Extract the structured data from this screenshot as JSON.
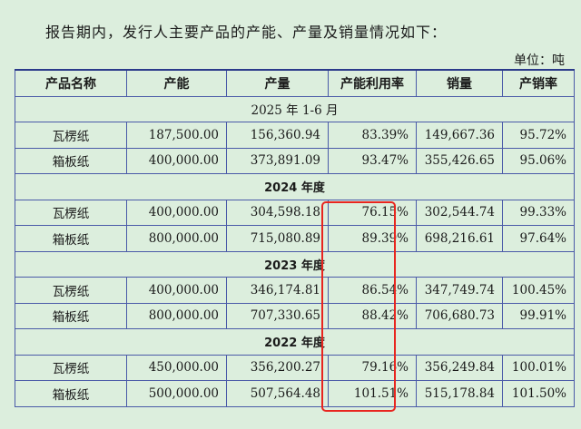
{
  "intro": "报告期内，发行人主要产品的产能、产量及销量情况如下：",
  "unit": "单位：吨",
  "headers": [
    "产品名称",
    "产能",
    "产量",
    "产能利用率",
    "销量",
    "产销率"
  ],
  "sections": [
    {
      "label": "2025 年 1-6 月",
      "rows": [
        [
          "瓦楞纸",
          "187,500.00",
          "156,360.94",
          "83.39%",
          "149,667.36",
          "95.72%"
        ],
        [
          "箱板纸",
          "400,000.00",
          "373,891.09",
          "93.47%",
          "355,426.65",
          "95.06%"
        ]
      ]
    },
    {
      "label": "2024 年度",
      "rows": [
        [
          "瓦楞纸",
          "400,000.00",
          "304,598.18",
          "76.15%",
          "302,544.74",
          "99.33%"
        ],
        [
          "箱板纸",
          "800,000.00",
          "715,080.89",
          "89.39%",
          "698,216.61",
          "97.64%"
        ]
      ]
    },
    {
      "label": "2023 年度",
      "rows": [
        [
          "瓦楞纸",
          "400,000.00",
          "346,174.81",
          "86.54%",
          "347,749.74",
          "100.45%"
        ],
        [
          "箱板纸",
          "800,000.00",
          "707,330.65",
          "88.42%",
          "706,680.73",
          "99.91%"
        ]
      ]
    },
    {
      "label": "2022 年度",
      "rows": [
        [
          "瓦楞纸",
          "450,000.00",
          "356,200.27",
          "79.16%",
          "356,249.84",
          "100.01%"
        ],
        [
          "箱板纸",
          "500,000.00",
          "507,564.48",
          "101.51%",
          "515,178.84",
          "101.50%"
        ]
      ]
    }
  ],
  "highlight_color": "#e8251f"
}
